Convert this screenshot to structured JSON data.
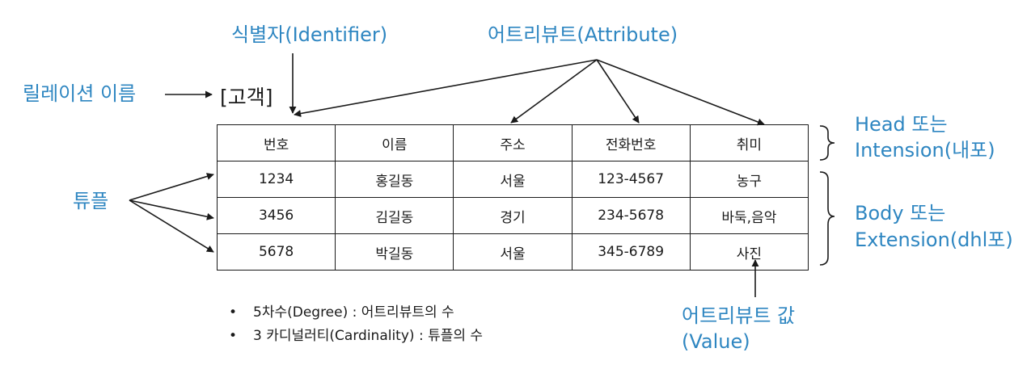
{
  "labels": {
    "identifier": "식별자(Identifier)",
    "attribute": "어트리뷰트(Attribute)",
    "relation_name": "릴레이션 이름",
    "relation_value": "[고객]",
    "head_line1": "Head 또는",
    "head_line2": "Intension(내포)",
    "tuple": "튜플",
    "body_line1": "Body 또는",
    "body_line2": "Extension(dhl포)",
    "attr_value_line1": "어트리뷰트 값",
    "attr_value_line2": "(Value)"
  },
  "table": {
    "headers": [
      "번호",
      "이름",
      "주소",
      "전화번호",
      "취미"
    ],
    "rows": [
      [
        "1234",
        "홍길동",
        "서울",
        "123-4567",
        "농구"
      ],
      [
        "3456",
        "김길동",
        "경기",
        "234-5678",
        "바둑,음악"
      ],
      [
        "5678",
        "박길동",
        "서울",
        "345-6789",
        "사진"
      ]
    ]
  },
  "notes": [
    "5차수(Degree) : 어트리뷰트의 수",
    "3 카디널러티(Cardinality) : 튜플의 수"
  ],
  "colors": {
    "label_blue": "#2e86c1",
    "dark": "#1a1a1a"
  }
}
